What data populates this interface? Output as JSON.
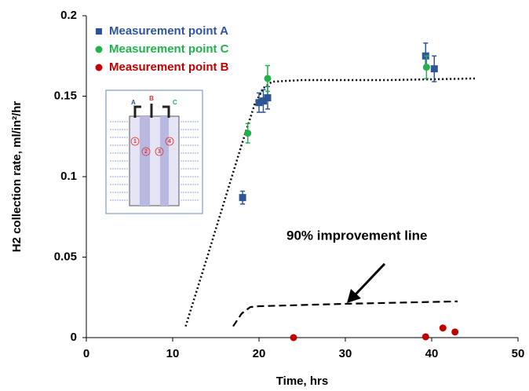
{
  "chart_data": {
    "type": "scatter",
    "x_label": "Time, hrs",
    "y_label": "H2 collection rate, ml/in²/hr",
    "xlim": [
      0,
      50
    ],
    "xticks": [
      0,
      10,
      20,
      30,
      40,
      50
    ],
    "ylim": [
      0,
      0.2
    ],
    "yticks": [
      0,
      0.05,
      0.1,
      0.15,
      0.2
    ],
    "legend": "upper left",
    "series": [
      {
        "name": "Measurement point A",
        "color": "#2f5597",
        "marker": "square",
        "x": [
          18.1,
          20.0,
          20.5,
          21.0,
          39.3,
          40.3
        ],
        "values": [
          0.087,
          0.146,
          0.147,
          0.149,
          0.175,
          0.167
        ],
        "errors": [
          0.004,
          0.006,
          0.007,
          0.007,
          0.008,
          0.008
        ]
      },
      {
        "name": "Measurement point C",
        "color": "#22b14c",
        "marker": "circle",
        "x": [
          18.7,
          21.0,
          39.4
        ],
        "values": [
          0.127,
          0.161,
          0.168
        ],
        "errors": [
          0.006,
          0.008,
          0.007
        ]
      },
      {
        "name": "Measurement point B",
        "color": "#c00000",
        "marker": "circle",
        "x": [
          24.0,
          39.3,
          41.3,
          42.7
        ],
        "values": [
          0,
          0.0005,
          0.006,
          0.0035
        ]
      }
    ],
    "lines": [
      {
        "style": "dotted",
        "color": "#000000",
        "x": [
          11.5,
          14,
          16,
          18,
          19.5,
          20.5,
          21.5,
          25,
          35,
          45
        ],
        "values": [
          0.007,
          0.05,
          0.085,
          0.12,
          0.145,
          0.155,
          0.159,
          0.16,
          0.16,
          0.161
        ]
      },
      {
        "style": "dashed",
        "color": "#000000",
        "x": [
          17,
          18,
          19,
          20,
          30,
          43
        ],
        "values": [
          0.007,
          0.015,
          0.019,
          0.0195,
          0.021,
          0.0225
        ]
      }
    ],
    "annotation": {
      "text": "90% improvement line"
    },
    "inset": {
      "labels": [
        "A",
        "B",
        "C",
        "1",
        "2",
        "3",
        "4"
      ]
    }
  }
}
